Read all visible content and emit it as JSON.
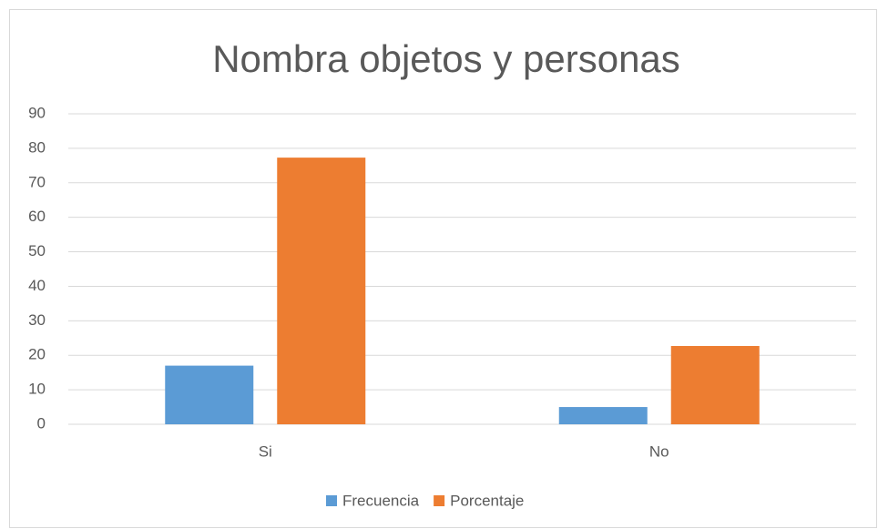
{
  "chart_data": {
    "type": "bar",
    "title": "Nombra objetos y personas",
    "categories": [
      "Si",
      "No"
    ],
    "series": [
      {
        "name": "Frecuencia",
        "color": "#5b9bd5",
        "values": [
          17,
          5
        ]
      },
      {
        "name": "Porcentaje",
        "color": "#ed7d31",
        "values": [
          77.3,
          22.7
        ]
      }
    ],
    "ylim": [
      0,
      90
    ],
    "yticks": [
      0,
      10,
      20,
      30,
      40,
      50,
      60,
      70,
      80,
      90
    ],
    "grid": true,
    "legend": "bottom"
  }
}
